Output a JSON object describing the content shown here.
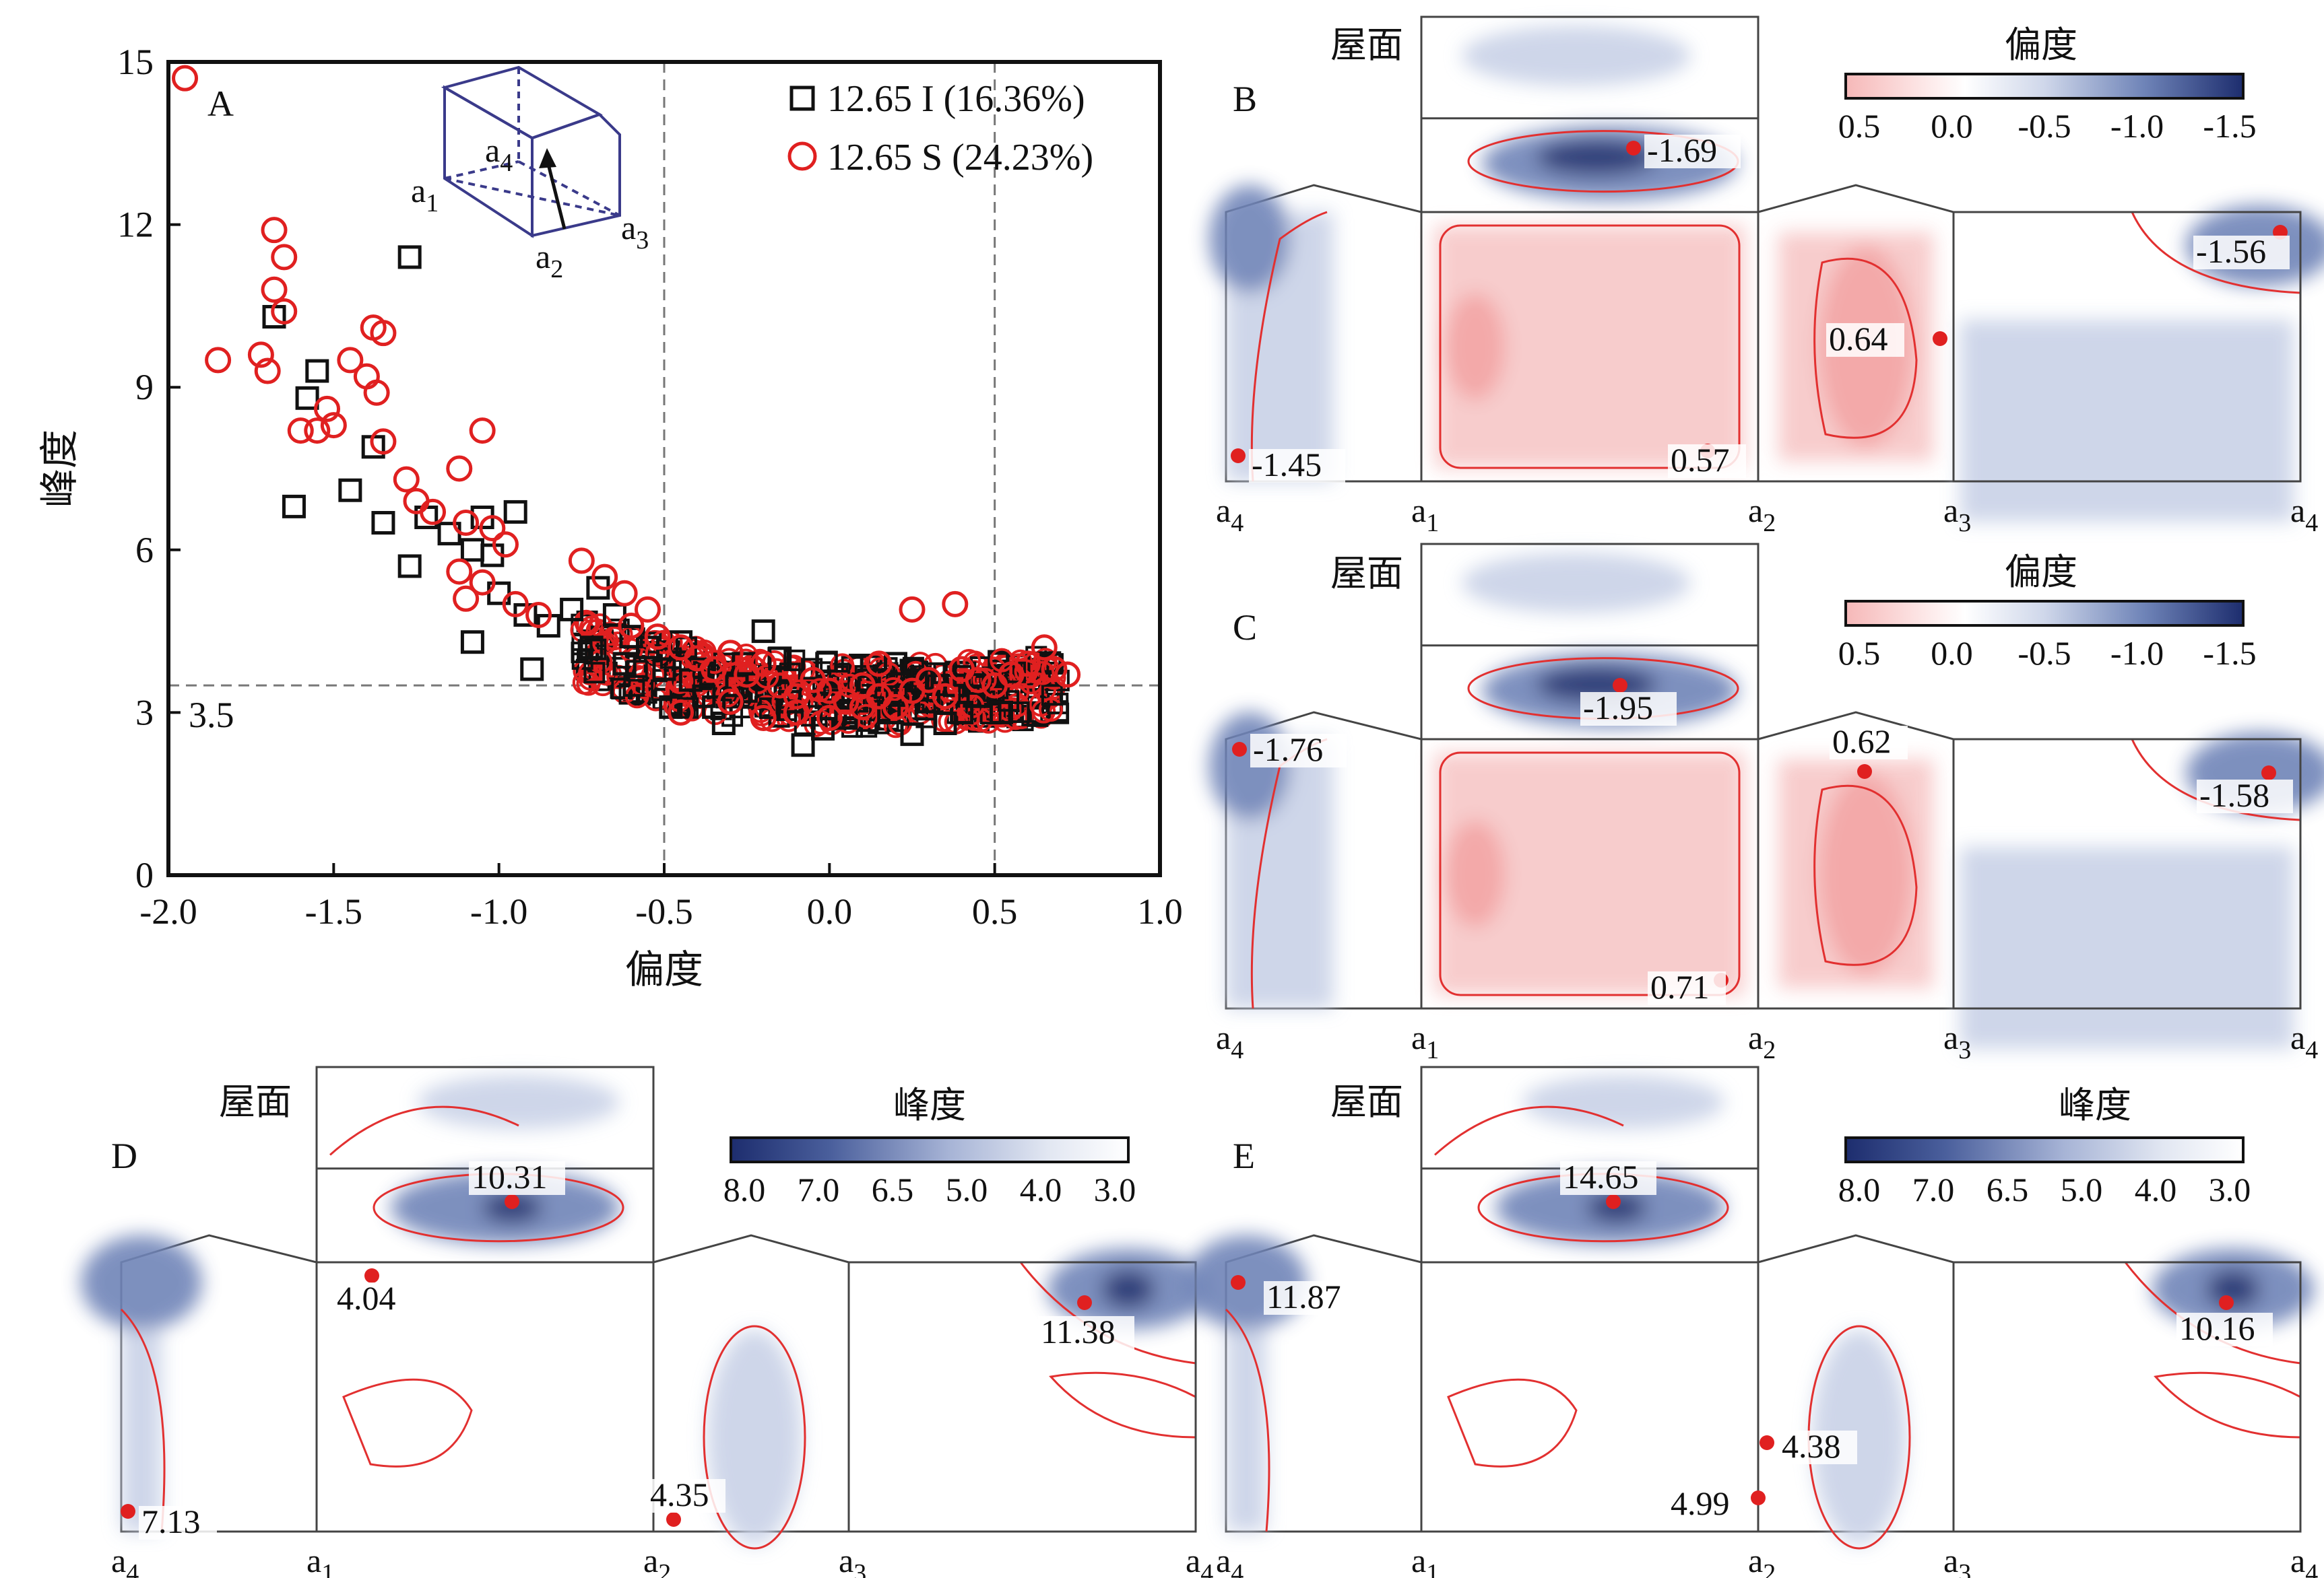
{
  "chart_data": [
    {
      "panel": "A",
      "type": "scatter",
      "xlabel": "偏度",
      "ylabel": "峰度",
      "xlim": [
        -2.0,
        1.0
      ],
      "ylim": [
        0,
        15
      ],
      "xticks": [
        "-2.0",
        "-1.5",
        "-1.0",
        "-0.5",
        "0.0",
        "0.5",
        "1.0"
      ],
      "yticks": [
        "0",
        "3",
        "6",
        "9",
        "12",
        "15"
      ],
      "ref_lines": {
        "x": [
          -0.5,
          0.5
        ],
        "y": 3.5,
        "y_label": "3.5"
      },
      "legend_position": "top-right",
      "series": [
        {
          "name": "12.65 I (16.36%)",
          "marker": "square",
          "color": "#111111",
          "points": [
            [
              -1.68,
              10.3
            ],
            [
              -1.27,
              11.4
            ],
            [
              -1.55,
              9.3
            ],
            [
              -1.58,
              8.8
            ],
            [
              -1.38,
              7.9
            ],
            [
              -1.62,
              6.8
            ],
            [
              -1.45,
              7.1
            ],
            [
              -1.35,
              6.5
            ],
            [
              -1.27,
              5.7
            ],
            [
              -1.22,
              6.6
            ],
            [
              -1.15,
              6.3
            ],
            [
              -1.08,
              6.0
            ],
            [
              -1.02,
              5.9
            ],
            [
              -0.95,
              6.7
            ],
            [
              -1.05,
              6.6
            ],
            [
              -1.0,
              5.2
            ],
            [
              -0.92,
              4.8
            ],
            [
              -1.08,
              4.3
            ],
            [
              -0.9,
              3.8
            ],
            [
              -0.85,
              4.6
            ],
            [
              -0.78,
              4.9
            ],
            [
              -0.7,
              5.3
            ],
            [
              -0.65,
              4.8
            ],
            [
              -0.6,
              4.4
            ],
            [
              -0.55,
              4.2
            ],
            [
              -0.5,
              3.8
            ],
            [
              -0.48,
              3.1
            ],
            [
              -0.42,
              3.6
            ],
            [
              -0.38,
              3.3
            ],
            [
              -0.32,
              2.8
            ],
            [
              -0.28,
              3.5
            ],
            [
              -0.2,
              4.5
            ],
            [
              -0.12,
              3.2
            ],
            [
              -0.08,
              2.4
            ],
            [
              -0.02,
              2.7
            ],
            [
              0.05,
              3.0
            ],
            [
              0.12,
              3.6
            ],
            [
              0.18,
              3.0
            ],
            [
              0.25,
              2.6
            ],
            [
              0.3,
              3.2
            ],
            [
              0.35,
              2.8
            ],
            [
              0.4,
              3.0
            ],
            [
              0.45,
              3.3
            ],
            [
              0.52,
              3.0
            ],
            [
              -0.26,
              3.9
            ],
            [
              -0.15,
              4.0
            ],
            [
              0.2,
              3.9
            ],
            [
              0.28,
              3.6
            ],
            [
              -0.62,
              3.9
            ],
            [
              -0.72,
              4.2
            ],
            [
              -0.45,
              4.3
            ],
            [
              -0.35,
              3.1
            ],
            [
              0.05,
              2.9
            ],
            [
              0.38,
              3.5
            ]
          ]
        },
        {
          "name": "12.65 S (24.23%)",
          "marker": "circle",
          "color": "#e02020",
          "points": [
            [
              -1.95,
              14.7
            ],
            [
              -1.68,
              11.9
            ],
            [
              -1.65,
              11.4
            ],
            [
              -1.68,
              10.8
            ],
            [
              -1.65,
              10.4
            ],
            [
              -1.38,
              10.1
            ],
            [
              -1.35,
              10.0
            ],
            [
              -1.85,
              9.5
            ],
            [
              -1.72,
              9.6
            ],
            [
              -1.7,
              9.3
            ],
            [
              -1.45,
              9.5
            ],
            [
              -1.4,
              9.2
            ],
            [
              -1.37,
              8.9
            ],
            [
              -1.52,
              8.6
            ],
            [
              -1.6,
              8.2
            ],
            [
              -1.55,
              8.2
            ],
            [
              -1.5,
              8.3
            ],
            [
              -1.35,
              8.0
            ],
            [
              -1.05,
              8.2
            ],
            [
              -1.28,
              7.3
            ],
            [
              -1.12,
              7.5
            ],
            [
              -1.25,
              6.9
            ],
            [
              -1.2,
              6.7
            ],
            [
              -1.1,
              6.5
            ],
            [
              -1.02,
              6.4
            ],
            [
              -0.98,
              6.1
            ],
            [
              -1.12,
              5.6
            ],
            [
              -1.05,
              5.4
            ],
            [
              -1.1,
              5.1
            ],
            [
              -0.95,
              5.0
            ],
            [
              -0.88,
              4.8
            ],
            [
              -0.75,
              5.8
            ],
            [
              -0.68,
              5.5
            ],
            [
              -0.62,
              5.2
            ],
            [
              -0.55,
              4.9
            ],
            [
              -0.6,
              4.6
            ],
            [
              -0.52,
              4.4
            ],
            [
              -0.45,
              4.2
            ],
            [
              -0.4,
              4.0
            ],
            [
              -0.35,
              3.8
            ],
            [
              -0.3,
              4.1
            ],
            [
              -0.25,
              3.7
            ],
            [
              -0.2,
              3.9
            ],
            [
              -0.15,
              3.5
            ],
            [
              -0.1,
              3.3
            ],
            [
              -0.05,
              3.6
            ],
            [
              0.0,
              3.4
            ],
            [
              0.05,
              3.2
            ],
            [
              0.1,
              3.5
            ],
            [
              0.15,
              3.3
            ],
            [
              0.2,
              3.1
            ],
            [
              0.25,
              3.4
            ],
            [
              0.3,
              3.6
            ],
            [
              0.35,
              3.3
            ],
            [
              0.4,
              3.8
            ],
            [
              0.45,
              3.6
            ],
            [
              0.5,
              3.5
            ],
            [
              0.55,
              3.7
            ],
            [
              0.6,
              3.9
            ],
            [
              0.65,
              4.2
            ],
            [
              0.68,
              3.8
            ],
            [
              0.72,
              3.7
            ],
            [
              0.25,
              4.9
            ],
            [
              0.38,
              5.0
            ],
            [
              0.15,
              3.9
            ],
            [
              -0.45,
              3.0
            ],
            [
              -0.3,
              3.2
            ],
            [
              -0.2,
              2.9
            ],
            [
              -0.1,
              3.0
            ],
            [
              0.0,
              2.9
            ],
            [
              0.1,
              3.1
            ]
          ]
        }
      ]
    },
    {
      "panel": "B",
      "type": "heatmap",
      "colorbar_title": "偏度",
      "colorbar_ticks": [
        "0.5",
        "0.0",
        "-0.5",
        "-1.0",
        "-1.5"
      ],
      "roof_label": "屋面",
      "annotations": [
        "-1.69",
        "-1.45",
        "0.57",
        "0.64",
        "-1.56"
      ]
    },
    {
      "panel": "C",
      "type": "heatmap",
      "colorbar_title": "偏度",
      "colorbar_ticks": [
        "0.5",
        "0.0",
        "-0.5",
        "-1.0",
        "-1.5"
      ],
      "roof_label": "屋面",
      "annotations": [
        "-1.95",
        "-1.76",
        "0.71",
        "0.62",
        "-1.58"
      ]
    },
    {
      "panel": "D",
      "type": "heatmap",
      "colorbar_title": "峰度",
      "colorbar_ticks": [
        "8.0",
        "7.0",
        "6.5",
        "5.0",
        "4.0",
        "3.0"
      ],
      "roof_label": "屋面",
      "annotations": [
        "10.31",
        "4.04",
        "7.13",
        "4.35",
        "11.38"
      ]
    },
    {
      "panel": "E",
      "type": "heatmap",
      "colorbar_title": "峰度",
      "colorbar_ticks": [
        "8.0",
        "7.0",
        "6.5",
        "5.0",
        "4.0",
        "3.0"
      ],
      "roof_label": "屋面",
      "annotations": [
        "14.65",
        "11.87",
        "4.99",
        "4.38",
        "10.16"
      ]
    }
  ],
  "corner_labels": [
    "a4",
    "a1",
    "a2",
    "a3",
    "a4"
  ],
  "inset_labels": [
    "a1",
    "a2",
    "a3",
    "a4"
  ],
  "colors": {
    "blue_dark": "#1d2d6e",
    "blue_mid": "#6f84b8",
    "blue_light": "#c9d2e7",
    "red_light": "#f7c7c7",
    "red_mid": "#f2a0a0",
    "contour": "#e23030",
    "marker": "#e02020"
  }
}
